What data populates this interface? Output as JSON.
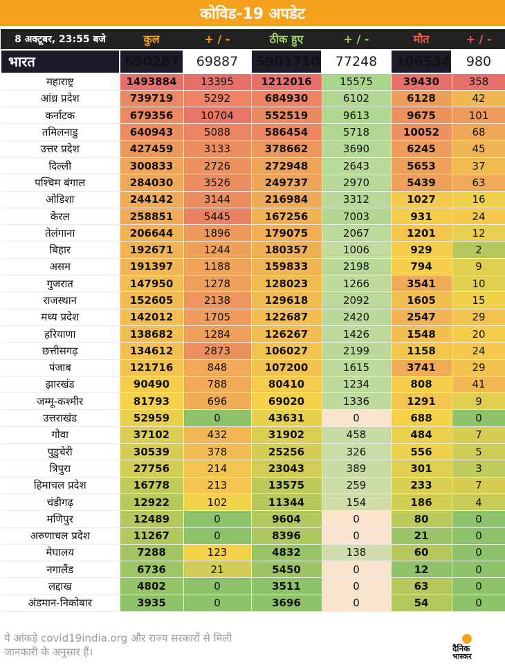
{
  "title": "कोविड-19 अपडेट",
  "header": {
    "date": "8 अक्टूबर, 23:55 बजे",
    "total": "कुल",
    "total_delta": "+ / -",
    "recovered": "ठीक हुए",
    "recovered_delta": "+ / -",
    "deaths": "मौत",
    "deaths_delta": "+ / -"
  },
  "india": {
    "name": "भारत",
    "total": "6902875",
    "total_delta": "69887",
    "recovered": "5901710",
    "recovered_delta": "77248",
    "deaths": "106534",
    "deaths_delta": "980"
  },
  "rows": [
    {
      "name": "महाराष्ट्र",
      "total": "1493884",
      "total_delta": "13395",
      "recovered": "1212016",
      "recovered_delta": "15575",
      "deaths": "39430",
      "deaths_delta": "358"
    },
    {
      "name": "आंध्र प्रदेश",
      "total": "739719",
      "total_delta": "5292",
      "recovered": "684930",
      "recovered_delta": "6102",
      "deaths": "6128",
      "deaths_delta": "42"
    },
    {
      "name": "कर्नाटक",
      "total": "679356",
      "total_delta": "10704",
      "recovered": "552519",
      "recovered_delta": "9613",
      "deaths": "9675",
      "deaths_delta": "101"
    },
    {
      "name": "तमिलनाडु",
      "total": "640943",
      "total_delta": "5088",
      "recovered": "586454",
      "recovered_delta": "5718",
      "deaths": "10052",
      "deaths_delta": "68"
    },
    {
      "name": "उत्तर प्रदेश",
      "total": "427459",
      "total_delta": "3133",
      "recovered": "378662",
      "recovered_delta": "3690",
      "deaths": "6245",
      "deaths_delta": "45"
    },
    {
      "name": "दिल्ली",
      "total": "300833",
      "total_delta": "2726",
      "recovered": "272948",
      "recovered_delta": "2643",
      "deaths": "5653",
      "deaths_delta": "37"
    },
    {
      "name": "पश्चिम बंगाल",
      "total": "284030",
      "total_delta": "3526",
      "recovered": "249737",
      "recovered_delta": "2970",
      "deaths": "5439",
      "deaths_delta": "63"
    },
    {
      "name": "ओडिशा",
      "total": "244142",
      "total_delta": "3144",
      "recovered": "216984",
      "recovered_delta": "3312",
      "deaths": "1027",
      "deaths_delta": "16"
    },
    {
      "name": "केरल",
      "total": "258851",
      "total_delta": "5445",
      "recovered": "167256",
      "recovered_delta": "7003",
      "deaths": "931",
      "deaths_delta": "24"
    },
    {
      "name": "तेलंगाना",
      "total": "206644",
      "total_delta": "1896",
      "recovered": "179075",
      "recovered_delta": "2067",
      "deaths": "1201",
      "deaths_delta": "12"
    },
    {
      "name": "बिहार",
      "total": "192671",
      "total_delta": "1244",
      "recovered": "180357",
      "recovered_delta": "1006",
      "deaths": "929",
      "deaths_delta": "2"
    },
    {
      "name": "असम",
      "total": "191397",
      "total_delta": "1188",
      "recovered": "159833",
      "recovered_delta": "2198",
      "deaths": "794",
      "deaths_delta": "9"
    },
    {
      "name": "गुजरात",
      "total": "147950",
      "total_delta": "1278",
      "recovered": "128023",
      "recovered_delta": "1266",
      "deaths": "3541",
      "deaths_delta": "10"
    },
    {
      "name": "राजस्थान",
      "total": "152605",
      "total_delta": "2138",
      "recovered": "129618",
      "recovered_delta": "2092",
      "deaths": "1605",
      "deaths_delta": "15"
    },
    {
      "name": "मध्य प्रदेश",
      "total": "142012",
      "total_delta": "1705",
      "recovered": "122687",
      "recovered_delta": "2420",
      "deaths": "2547",
      "deaths_delta": "29"
    },
    {
      "name": "हरियाणा",
      "total": "138682",
      "total_delta": "1284",
      "recovered": "126267",
      "recovered_delta": "1426",
      "deaths": "1548",
      "deaths_delta": "20"
    },
    {
      "name": "छत्तीसगढ़",
      "total": "134612",
      "total_delta": "2873",
      "recovered": "106027",
      "recovered_delta": "2199",
      "deaths": "1158",
      "deaths_delta": "24"
    },
    {
      "name": "पंजाब",
      "total": "121716",
      "total_delta": "848",
      "recovered": "107200",
      "recovered_delta": "1615",
      "deaths": "3741",
      "deaths_delta": "29"
    },
    {
      "name": "झारखंड",
      "total": "90490",
      "total_delta": "788",
      "recovered": "80410",
      "recovered_delta": "1234",
      "deaths": "808",
      "deaths_delta": "41"
    },
    {
      "name": "जम्मू-कश्मीर",
      "total": "81793",
      "total_delta": "696",
      "recovered": "69020",
      "recovered_delta": "1336",
      "deaths": "1291",
      "deaths_delta": "9"
    },
    {
      "name": "उत्तराखंड",
      "total": "52959",
      "total_delta": "0",
      "recovered": "43631",
      "recovered_delta": "0",
      "deaths": "688",
      "deaths_delta": "0"
    },
    {
      "name": "गोवा",
      "total": "37102",
      "total_delta": "432",
      "recovered": "31902",
      "recovered_delta": "458",
      "deaths": "484",
      "deaths_delta": "7"
    },
    {
      "name": "पुडुचेरी",
      "total": "30539",
      "total_delta": "378",
      "recovered": "25256",
      "recovered_delta": "326",
      "deaths": "556",
      "deaths_delta": "5"
    },
    {
      "name": "त्रिपुरा",
      "total": "27756",
      "total_delta": "214",
      "recovered": "23043",
      "recovered_delta": "389",
      "deaths": "301",
      "deaths_delta": "3"
    },
    {
      "name": "हिमाचल प्रदेश",
      "total": "16778",
      "total_delta": "213",
      "recovered": "13575",
      "recovered_delta": "259",
      "deaths": "233",
      "deaths_delta": "7"
    },
    {
      "name": "चंडीगढ़",
      "total": "12922",
      "total_delta": "102",
      "recovered": "11344",
      "recovered_delta": "154",
      "deaths": "186",
      "deaths_delta": "4"
    },
    {
      "name": "मणिपुर",
      "total": "12489",
      "total_delta": "0",
      "recovered": "9604",
      "recovered_delta": "0",
      "deaths": "80",
      "deaths_delta": "0"
    },
    {
      "name": "अरुणाचल प्रदेश",
      "total": "11267",
      "total_delta": "0",
      "recovered": "8396",
      "recovered_delta": "0",
      "deaths": "21",
      "deaths_delta": "0"
    },
    {
      "name": "मेघालय",
      "total": "7288",
      "total_delta": "123",
      "recovered": "4832",
      "recovered_delta": "138",
      "deaths": "60",
      "deaths_delta": "0"
    },
    {
      "name": "नगालैंड",
      "total": "6736",
      "total_delta": "21",
      "recovered": "5450",
      "recovered_delta": "0",
      "deaths": "12",
      "deaths_delta": "0"
    },
    {
      "name": "लद्दाख",
      "total": "4802",
      "total_delta": "0",
      "recovered": "3511",
      "recovered_delta": "0",
      "deaths": "63",
      "deaths_delta": "0"
    },
    {
      "name": "अंडमान-निकोबार",
      "total": "3935",
      "total_delta": "0",
      "recovered": "3696",
      "recovered_delta": "0",
      "deaths": "54",
      "deaths_delta": "0"
    }
  ],
  "footer": "ये आंकड़े covid19india.org और राज्य सरकारों से मिली जानकारी के अनुसार हैं।",
  "logo": {
    "line1": "दैनिक",
    "line2": "भास्कर"
  },
  "colors": {
    "accent": "#f5a11c",
    "header_bg": "#222222",
    "india_bg": "#1b1b2a",
    "high": "#e8706a",
    "mid": "#f5d24a",
    "low": "#8dc26a"
  }
}
